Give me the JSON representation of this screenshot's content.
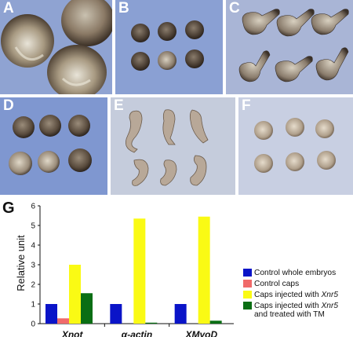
{
  "panels": [
    {
      "id": "A",
      "label": "A",
      "bg": "#8fa3d2"
    },
    {
      "id": "B",
      "label": "B",
      "bg": "#8aa0d3"
    },
    {
      "id": "C",
      "label": "C",
      "bg": "#a9b5d6"
    },
    {
      "id": "D",
      "label": "D",
      "bg": "#7f97d0"
    },
    {
      "id": "E",
      "label": "E",
      "bg": "#c5ccdc"
    },
    {
      "id": "F",
      "label": "F",
      "bg": "#c8cfe2"
    }
  ],
  "chart_panel_label": "G",
  "chart_data": {
    "type": "bar",
    "categories": [
      "Xnot",
      "α-actin",
      "XMyoD"
    ],
    "series": [
      {
        "name": "Control whole embryos",
        "color": "#0a14c8",
        "values": [
          1.0,
          1.0,
          1.0
        ]
      },
      {
        "name": "Control caps",
        "color": "#f06a6a",
        "values": [
          0.27,
          0.0,
          0.0
        ]
      },
      {
        "name": "Caps injected with Xnr5",
        "color": "#fafa14",
        "values": [
          3.0,
          5.35,
          5.45
        ]
      },
      {
        "name": "Caps injected with Xnr5 and treated with TM",
        "color": "#0a6e14",
        "values": [
          1.55,
          0.05,
          0.15
        ]
      }
    ],
    "ylabel": "Relative unit",
    "xlabel": "",
    "ylim": [
      0,
      6
    ],
    "yticks": [
      "0",
      "1",
      "2",
      "3",
      "4",
      "5",
      "6"
    ]
  },
  "legend": [
    {
      "prefix": "Control whole embryos",
      "italic": "",
      "suffix": "",
      "line2": "",
      "color": "#0a14c8"
    },
    {
      "prefix": "Control caps",
      "italic": "",
      "suffix": "",
      "line2": "",
      "color": "#f06a6a"
    },
    {
      "prefix": "Caps injected with ",
      "italic": "Xnr5",
      "suffix": "",
      "line2": "",
      "color": "#fafa14"
    },
    {
      "prefix": "Caps injected with ",
      "italic": "Xnr5",
      "suffix": "",
      "line2": "and treated with TM",
      "color": "#0a6e14"
    }
  ]
}
